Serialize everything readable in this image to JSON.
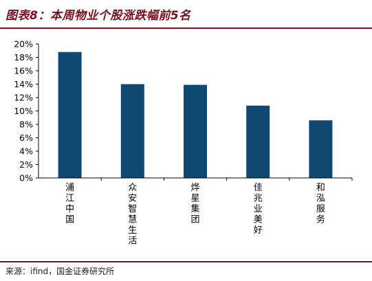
{
  "figure": {
    "title": "图表8：本周物业个股涨跌幅前5名",
    "source": "来源：ifind，国金证券研究所"
  },
  "colors": {
    "title": "#7a0f1e",
    "bar": "#0f4870",
    "axis": "#000000"
  },
  "chart_data": {
    "type": "bar",
    "categories": [
      "浦江中国",
      "众安智慧生活",
      "烨星集团",
      "佳兆业美好",
      "和泓服务"
    ],
    "values": [
      18.8,
      14.0,
      13.9,
      10.8,
      8.6
    ],
    "unit": "%",
    "ylim": [
      0,
      20
    ],
    "yticks": [
      0,
      2,
      4,
      6,
      8,
      10,
      12,
      14,
      16,
      18,
      20
    ],
    "ytick_labels": [
      "0%",
      "2%",
      "4%",
      "6%",
      "8%",
      "10%",
      "12%",
      "14%",
      "16%",
      "18%",
      "20%"
    ],
    "grid": false,
    "legend": false,
    "label_orientation": "vertical"
  }
}
